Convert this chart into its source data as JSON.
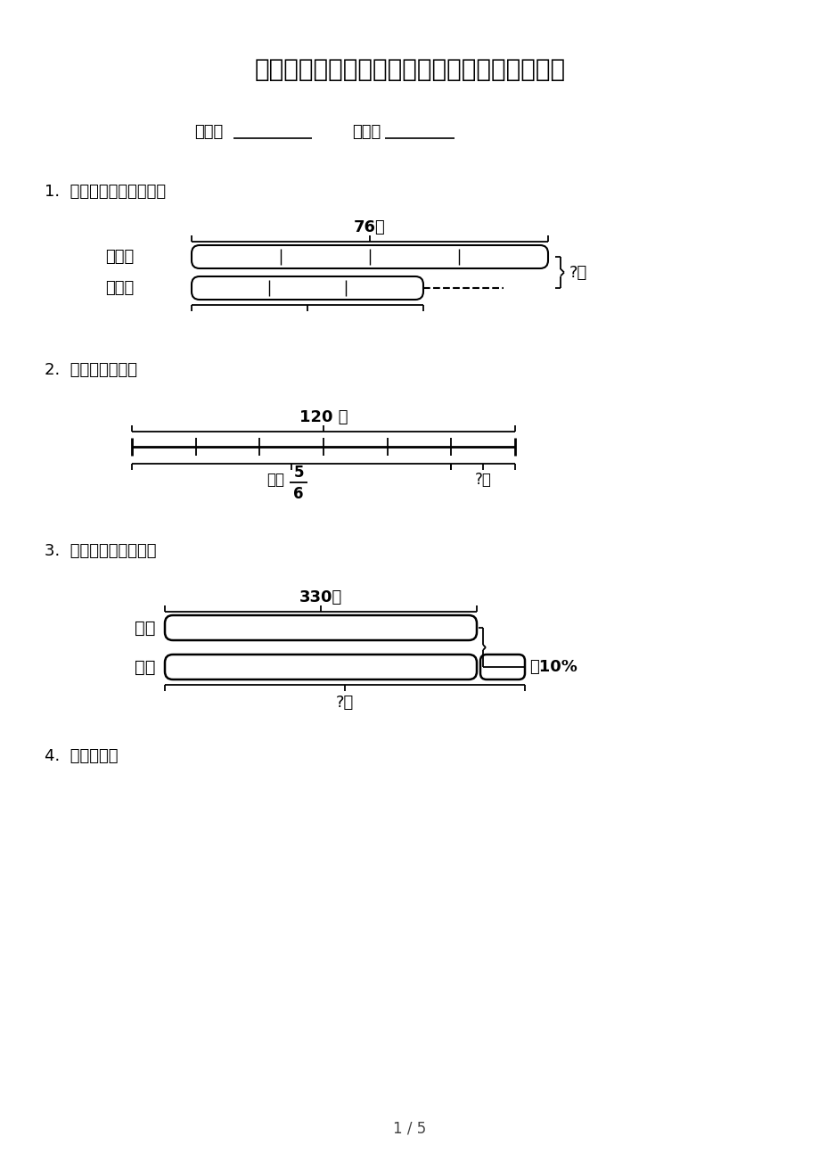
{
  "title": "六年级北京版数学下册看图列方程考前专项练习",
  "background_color": "#ffffff",
  "page_number": "1 / 5",
  "class_label": "班级：",
  "name_label": "姓名：",
  "q1_label": "1.  我能看图列式并计算。",
  "q2_label": "2.  看图列式计算。",
  "q3_label": "3.  看图列式，并计算。",
  "q4_label": "4.  看图列式。",
  "diagram1": {
    "top_label": "76元",
    "row1_label": "桌子：",
    "row2_label": "椅子：",
    "right_label": "?元"
  },
  "diagram2": {
    "top_label": "120 吨",
    "bottom_left_label": "用去",
    "fraction_num": "5",
    "fraction_den": "6",
    "right_label": "?吨"
  },
  "diagram3": {
    "top_label": "330只",
    "row1_label": "黑兔",
    "row2_label": "白兔",
    "extra_label": "多10%",
    "bottom_label": "?只"
  }
}
